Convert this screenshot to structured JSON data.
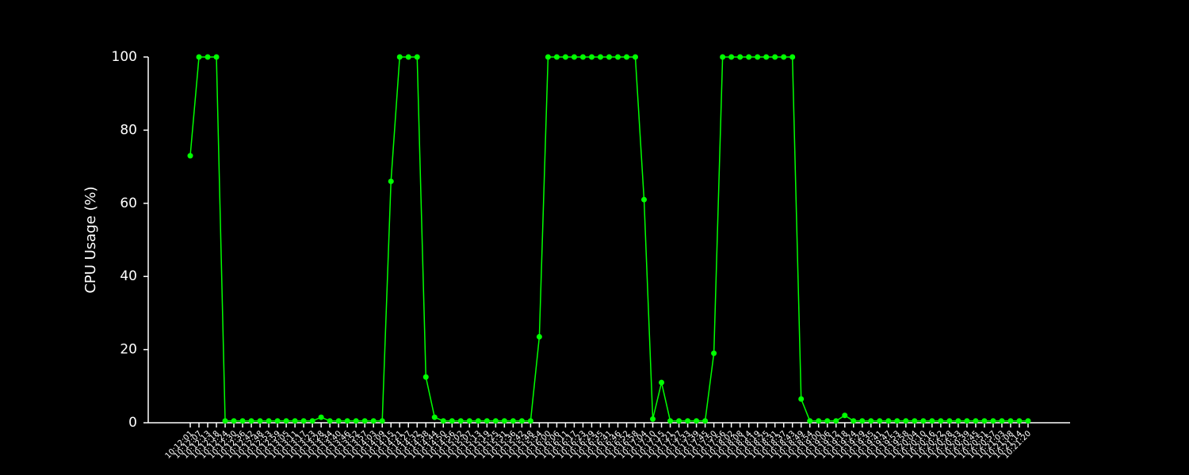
{
  "chart_data": {
    "type": "line",
    "ylabel": "CPU Usage (%)",
    "categories": [
      "10:12:01",
      "10:12:07",
      "10:12:13",
      "10:12:18",
      "10:12:24",
      "10:12:30",
      "10:12:36",
      "10:12:42",
      "10:12:48",
      "10:12:53",
      "10:12:59",
      "10:13:05",
      "10:13:11",
      "10:13:17",
      "10:13:23",
      "10:13:28",
      "10:13:34",
      "10:13:40",
      "10:13:46",
      "10:13:52",
      "10:13:57",
      "10:14:03",
      "10:14:09",
      "10:14:15",
      "10:14:21",
      "10:14:27",
      "10:14:32",
      "10:14:38",
      "10:14:44",
      "10:14:50",
      "10:14:56",
      "10:15:02",
      "10:15:07",
      "10:15:13",
      "10:15:19",
      "10:15:25",
      "10:15:31",
      "10:15:36",
      "10:15:42",
      "10:15:48",
      "10:15:54",
      "10:16:00",
      "10:16:06",
      "10:16:11",
      "10:16:17",
      "10:16:23",
      "10:16:29",
      "10:16:35",
      "10:16:41",
      "10:16:46",
      "10:16:52",
      "10:16:58",
      "10:17:04",
      "10:17:10",
      "10:17:15",
      "10:17:21",
      "10:17:27",
      "10:17:33",
      "10:17:39",
      "10:17:45",
      "10:17:50",
      "10:17:56",
      "10:18:02",
      "10:18:08",
      "10:18:14",
      "10:18:19",
      "10:18:25",
      "10:18:31",
      "10:18:37",
      "10:18:43",
      "10:18:49",
      "10:18:54",
      "10:19:00",
      "10:19:06",
      "10:19:12",
      "10:19:18",
      "10:19:24",
      "10:19:29",
      "10:19:35",
      "10:19:41",
      "10:19:47",
      "10:19:53",
      "10:19:58",
      "10:20:04",
      "10:20:10",
      "10:20:16",
      "10:20:22",
      "10:20:28",
      "10:20:33",
      "10:20:39",
      "10:20:45",
      "10:20:51",
      "10:20:57",
      "10:21:03",
      "10:21:08",
      "10:21:14",
      "10:21:20"
    ],
    "series": [
      {
        "name": "CPU",
        "color": "#00ff00",
        "values": [
          73,
          100,
          100,
          100,
          0.5,
          0.5,
          0.5,
          0.5,
          0.5,
          0.5,
          0.5,
          0.5,
          0.5,
          0.5,
          0.5,
          1.5,
          0.5,
          0.5,
          0.5,
          0.5,
          0.5,
          0.5,
          0.5,
          66,
          100,
          100,
          100,
          12.5,
          1.5,
          0.5,
          0.5,
          0.5,
          0.5,
          0.5,
          0.5,
          0.5,
          0.5,
          0.5,
          0.5,
          0.5,
          23.5,
          100,
          100,
          100,
          100,
          100,
          100,
          100,
          100,
          100,
          100,
          100,
          61,
          1,
          11,
          0.5,
          0.5,
          0.5,
          0.5,
          0.5,
          19,
          100,
          100,
          100,
          100,
          100,
          100,
          100,
          100,
          100,
          6.5,
          0.5,
          0.5,
          0.5,
          0.5,
          2,
          0.5,
          0.5,
          0.5,
          0.5,
          0.5,
          0.5,
          0.5,
          0.5,
          0.5,
          0.5,
          0.5,
          0.5,
          0.5,
          0.5,
          0.5,
          0.5,
          0.5,
          0.5,
          0.5,
          0.5,
          0.5
        ]
      }
    ],
    "ylim": [
      0,
      100
    ],
    "yticks": [
      0,
      20,
      40,
      60,
      80,
      100
    ]
  }
}
